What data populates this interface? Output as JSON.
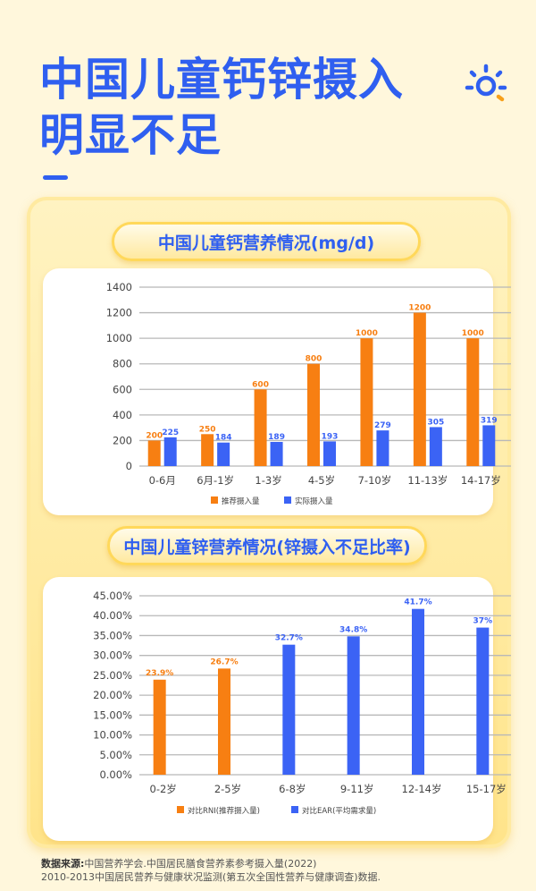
{
  "header": {
    "title_line1": "中国儿童钙锌摄入",
    "title_line2": "明显不足"
  },
  "colors": {
    "blue": "#3b63f5",
    "orange": "#f77f12",
    "title": "#2f5ff0"
  },
  "icons": [
    "sun-icon"
  ],
  "chart_data": [
    {
      "type": "bar",
      "title": "中国儿童钙营养情况(mg/d)",
      "categories": [
        "0-6月",
        "6月-1岁",
        "1-3岁",
        "4-5岁",
        "7-10岁",
        "11-13岁",
        "14-17岁"
      ],
      "series": [
        {
          "name": "推荐摄入量",
          "color": "#f77f12",
          "values": [
            200,
            250,
            600,
            800,
            1000,
            1200,
            1000
          ]
        },
        {
          "name": "实际摄入量",
          "color": "#3b63f5",
          "values": [
            225,
            184,
            189,
            193,
            279,
            305,
            319
          ]
        }
      ],
      "ylim": [
        0,
        1400
      ],
      "yticks": [
        "0",
        "200",
        "400",
        "600",
        "800",
        "1000",
        "1200",
        "1400"
      ],
      "grid": true,
      "legend": "bottom"
    },
    {
      "type": "bar",
      "title": "中国儿童锌营养情况(锌摄入不足比率)",
      "categories": [
        "0-2岁",
        "2-5岁",
        "6-8岁",
        "9-11岁",
        "12-14岁",
        "15-17岁"
      ],
      "values": [
        23.9,
        26.7,
        32.7,
        34.8,
        41.7,
        37
      ],
      "labels": [
        "23.9%",
        "26.7%",
        "32.7%",
        "34.8%",
        "41.7%",
        "37%"
      ],
      "bar_series": [
        0,
        0,
        1,
        1,
        1,
        1
      ],
      "series": [
        {
          "name": "对比RNI(推荐摄入量)",
          "color": "#f77f12"
        },
        {
          "name": "对比EAR(平均需求量)",
          "color": "#3b63f5"
        }
      ],
      "ylim": [
        0,
        45
      ],
      "yticks": [
        "0.00%",
        "5.00%",
        "10.00%",
        "15.00%",
        "20.00%",
        "25.00%",
        "30.00%",
        "35.00%",
        "40.00%",
        "45.00%"
      ],
      "grid": true,
      "legend": "bottom"
    }
  ],
  "source": {
    "label": "数据来源:",
    "line1": "中国营养学会.中国居民膳食营养素参考摄入量(2022)",
    "line2": "2010-2013中国居民营养与健康状况监测(第五次全国性营养与健康调查)数据."
  }
}
